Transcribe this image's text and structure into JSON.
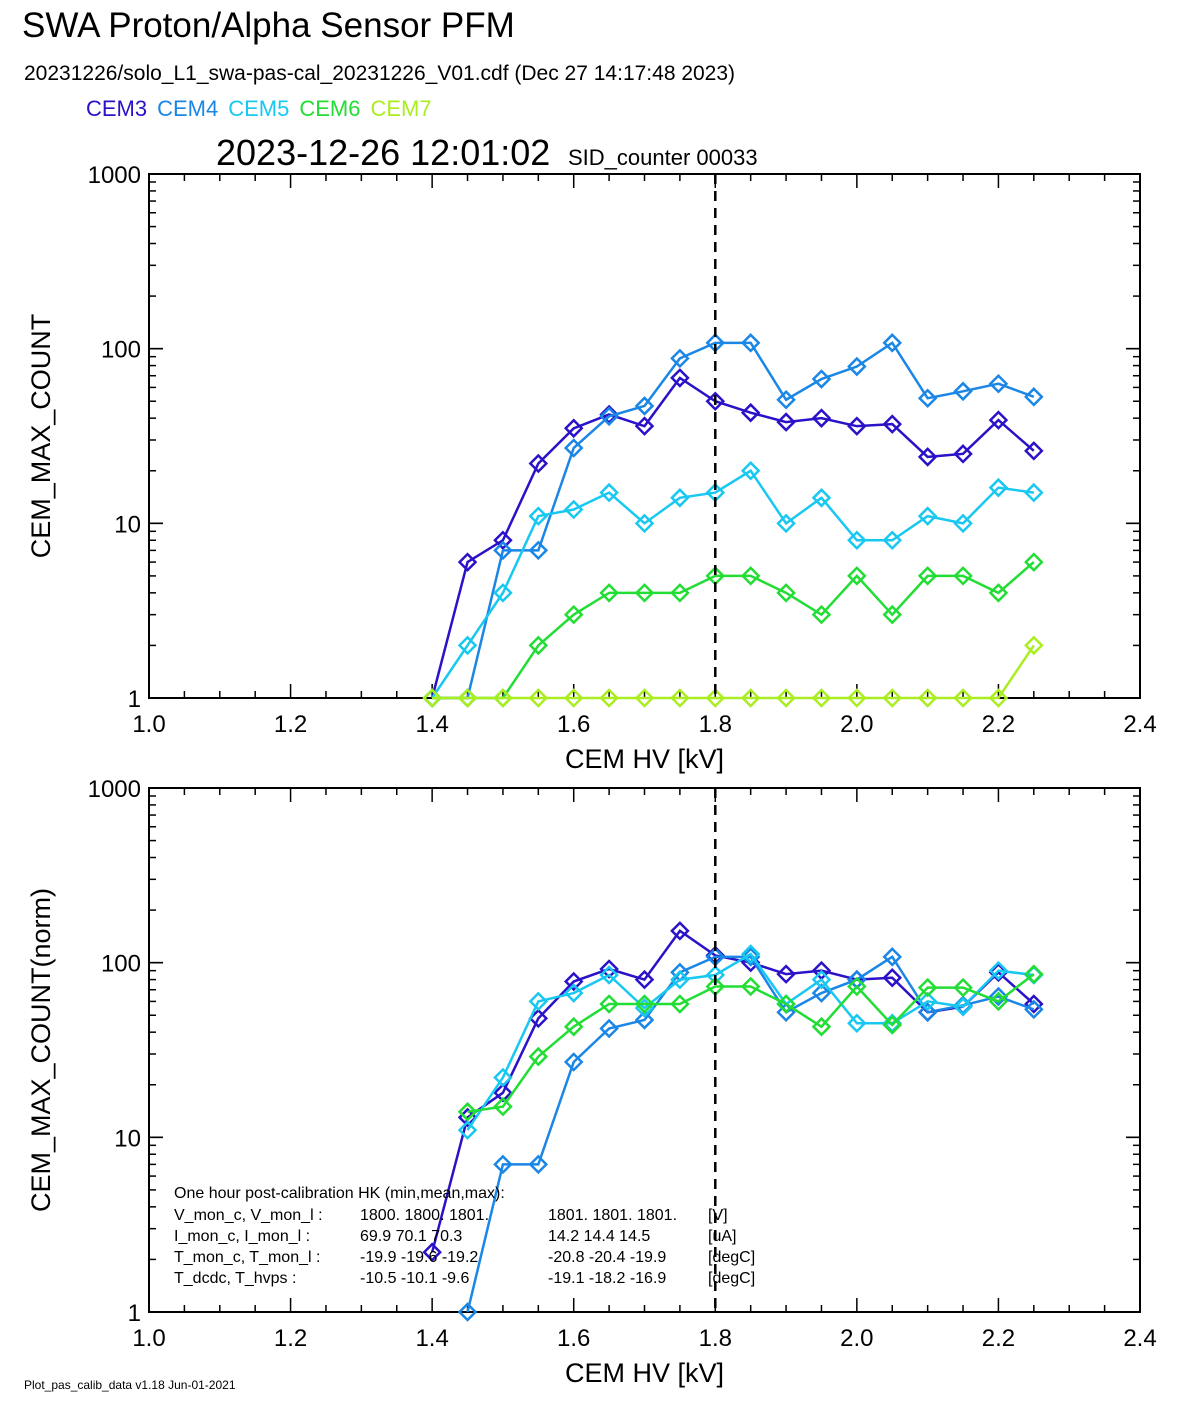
{
  "title": "SWA Proton/Alpha Sensor PFM",
  "subtitle": "20231226/solo_L1_swa-pas-cal_20231226_V01.cdf  (Dec 27 14:17:48 2023)",
  "timestamp": "2023-12-26 12:01:02",
  "sid_counter": "SID_counter 00033",
  "footer": "Plot_pas_calib_data v1.18 Jun-01-2021",
  "legend": [
    {
      "name": "CEM3",
      "color": "#2a12c8"
    },
    {
      "name": "CEM4",
      "color": "#1a86e6"
    },
    {
      "name": "CEM5",
      "color": "#18c8f0"
    },
    {
      "name": "CEM6",
      "color": "#22dd33"
    },
    {
      "name": "CEM7",
      "color": "#aaee22"
    }
  ],
  "hk_text": {
    "header": "One hour post-calibration HK (min,mean,max):",
    "rows": [
      {
        "label": "V_mon_c, V_mon_l :",
        "c": "1800.  1800.  1801.",
        "l": "1801.  1801.  1801.",
        "unit": "[V]"
      },
      {
        "label": "I_mon_c,  I_mon_l :",
        "c": "69.9   70.1   70.3",
        "l": "14.2   14.4   14.5",
        "unit": "[uA]"
      },
      {
        "label": "T_mon_c, T_mon_l :",
        "c": "-19.9  -19.6  -19.2",
        "l": "-20.8  -20.4  -19.9",
        "unit": "[degC]"
      },
      {
        "label": "T_dcdc,    T_hvps :",
        "c": "-10.5  -10.1   -9.6",
        "l": "-19.1  -18.2  -16.9",
        "unit": "[degC]"
      }
    ]
  },
  "chart_data": [
    {
      "type": "line",
      "xlabel": "CEM HV [kV]",
      "ylabel": "CEM_MAX_COUNT",
      "xlim": [
        1.0,
        2.4
      ],
      "ylim": [
        1,
        1000
      ],
      "yscale": "log",
      "xticks": [
        "1.0",
        "1.2",
        "1.4",
        "1.6",
        "1.8",
        "2.0",
        "2.2",
        "2.4"
      ],
      "yticks": [
        "1",
        "10",
        "100",
        "1000"
      ],
      "vline_x": 1.8,
      "x": [
        1.4,
        1.45,
        1.5,
        1.55,
        1.6,
        1.65,
        1.7,
        1.75,
        1.8,
        1.85,
        1.9,
        1.95,
        2.0,
        2.05,
        2.1,
        2.15,
        2.2,
        2.25
      ],
      "series": [
        {
          "name": "CEM3",
          "values": [
            1,
            6,
            8,
            22,
            35,
            42,
            36,
            68,
            50,
            43,
            38,
            40,
            36,
            37,
            24,
            25,
            39,
            26
          ]
        },
        {
          "name": "CEM4",
          "values": [
            1,
            1,
            7,
            7,
            27,
            41,
            47,
            88,
            108,
            108,
            51,
            67,
            79,
            108,
            52,
            57,
            63,
            53
          ]
        },
        {
          "name": "CEM5",
          "values": [
            1,
            2,
            4,
            11,
            12,
            15,
            10,
            14,
            15,
            20,
            10,
            14,
            8,
            8,
            11,
            10,
            16,
            15
          ]
        },
        {
          "name": "CEM6",
          "values": [
            1,
            1,
            1,
            2,
            3,
            4,
            4,
            4,
            5,
            5,
            4,
            3,
            5,
            3,
            5,
            5,
            4,
            6
          ]
        },
        {
          "name": "CEM7",
          "values": [
            1,
            1,
            1,
            1,
            1,
            1,
            1,
            1,
            1,
            1,
            1,
            1,
            1,
            1,
            1,
            1,
            1,
            2
          ]
        }
      ]
    },
    {
      "type": "line",
      "xlabel": "CEM HV [kV]",
      "ylabel": "CEM_MAX_COUNT(norm)",
      "xlim": [
        1.0,
        2.4
      ],
      "ylim": [
        1,
        1000
      ],
      "yscale": "log",
      "xticks": [
        "1.0",
        "1.2",
        "1.4",
        "1.6",
        "1.8",
        "2.0",
        "2.2",
        "2.4"
      ],
      "yticks": [
        "1",
        "10",
        "100",
        "1000"
      ],
      "vline_x": 1.8,
      "x": [
        1.4,
        1.45,
        1.5,
        1.55,
        1.6,
        1.65,
        1.7,
        1.75,
        1.8,
        1.85,
        1.9,
        1.95,
        2.0,
        2.05,
        2.1,
        2.15,
        2.2,
        2.25
      ],
      "series": [
        {
          "name": "CEM3",
          "values": [
            2.2,
            13,
            18,
            48,
            78,
            92,
            80,
            152,
            110,
            100,
            86,
            90,
            80,
            82,
            52,
            56,
            88,
            58
          ]
        },
        {
          "name": "CEM4",
          "values": [
            null,
            1,
            7,
            7,
            27,
            42,
            47,
            88,
            108,
            108,
            52,
            67,
            80,
            108,
            52,
            57,
            64,
            54
          ]
        },
        {
          "name": "CEM5",
          "values": [
            null,
            11,
            22,
            60,
            67,
            85,
            55,
            80,
            85,
            112,
            58,
            80,
            45,
            45,
            60,
            56,
            90,
            85
          ]
        },
        {
          "name": "CEM6",
          "values": [
            null,
            14,
            15,
            29,
            43,
            58,
            58,
            58,
            73,
            73,
            58,
            43,
            73,
            44,
            72,
            72,
            60,
            86
          ]
        }
      ]
    }
  ]
}
